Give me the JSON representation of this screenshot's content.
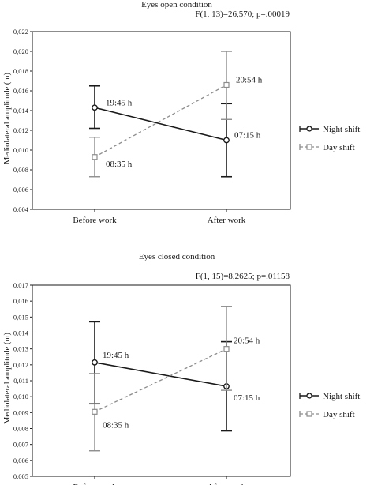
{
  "chart_data": [
    {
      "type": "line",
      "title": "Eyes open condition",
      "subtitle": "F(1, 13)=26,570; p=.00019",
      "ylabel": "Mediolateral amplitude (m)",
      "categories": [
        "Before work",
        "After work"
      ],
      "ylim": [
        0.004,
        0.022
      ],
      "yticks": [
        "0,004",
        "0,006",
        "0,008",
        "0,010",
        "0,012",
        "0,014",
        "0,016",
        "0,018",
        "0,020",
        "0,022"
      ],
      "legend_position": "right",
      "series": [
        {
          "name": "Night shift",
          "values": [
            0.0143,
            0.011
          ],
          "error_low": [
            0.0122,
            0.0073
          ],
          "error_high": [
            0.0165,
            0.0147
          ],
          "point_labels": [
            "19:45 h",
            "07:15 h"
          ],
          "color": "#1a1a1a",
          "dashed": false,
          "marker": "circle"
        },
        {
          "name": "Day shift",
          "values": [
            0.0093,
            0.0166
          ],
          "error_low": [
            0.0073,
            0.0131
          ],
          "error_high": [
            0.0113,
            0.02
          ],
          "point_labels": [
            "08:35 h",
            "20:54 h"
          ],
          "color": "#8c8c8c",
          "dashed": true,
          "marker": "square"
        }
      ]
    },
    {
      "type": "line",
      "title": "Eyes closed condition",
      "subtitle": "F(1, 15)=8,2625; p=.01158",
      "ylabel": "Mediolateral amplitude (m)",
      "categories": [
        "Before work",
        "After work"
      ],
      "ylim": [
        0.005,
        0.017
      ],
      "yticks": [
        "0,005",
        "0,006",
        "0,007",
        "0,008",
        "0,009",
        "0,010",
        "0,011",
        "0,012",
        "0,013",
        "0,014",
        "0,015",
        "0,016",
        "0,017"
      ],
      "legend_position": "right",
      "series": [
        {
          "name": "Night shift",
          "values": [
            0.01215,
            0.01065
          ],
          "error_low": [
            0.00955,
            0.00785
          ],
          "error_high": [
            0.0147,
            0.01345
          ],
          "point_labels": [
            "19:45 h",
            "07:15 h"
          ],
          "color": "#1a1a1a",
          "dashed": false,
          "marker": "circle"
        },
        {
          "name": "Day shift",
          "values": [
            0.00905,
            0.013
          ],
          "error_low": [
            0.0066,
            0.0104
          ],
          "error_high": [
            0.01145,
            0.01565
          ],
          "point_labels": [
            "08:35 h",
            "20:54 h"
          ],
          "color": "#8c8c8c",
          "dashed": true,
          "marker": "square"
        }
      ]
    }
  ]
}
